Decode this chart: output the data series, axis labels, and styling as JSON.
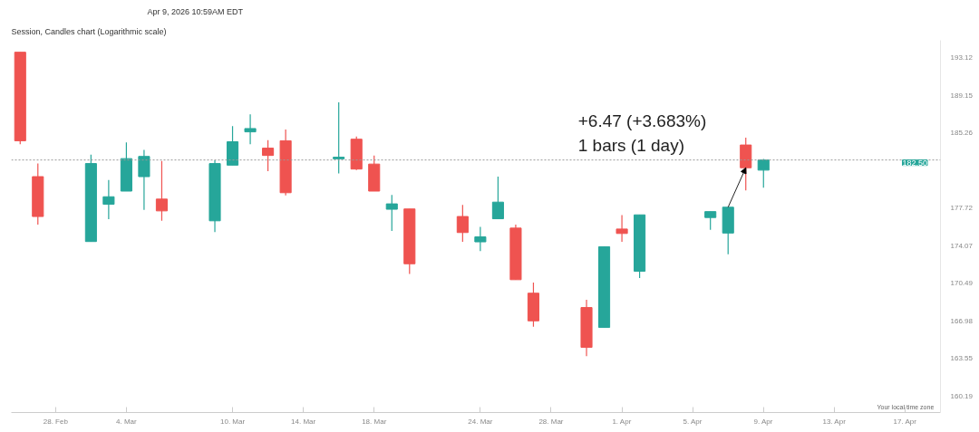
{
  "chart_data": {
    "type": "candlestick",
    "title": "Apr 9, 2026 10:59AM EDT",
    "subtitle": "Session, Candles chart (Logarithmic scale)",
    "x": [
      "2026-02-26",
      "2026-02-27",
      "2026-03-02",
      "2026-03-03",
      "2026-03-04",
      "2026-03-05",
      "2026-03-06",
      "2026-03-09",
      "2026-03-10",
      "2026-03-11",
      "2026-03-12",
      "2026-03-13",
      "2026-03-16",
      "2026-03-17",
      "2026-03-18",
      "2026-03-19",
      "2026-03-20",
      "2026-03-23",
      "2026-03-24",
      "2026-03-25",
      "2026-03-26",
      "2026-03-27",
      "2026-03-30",
      "2026-03-31",
      "2026-04-01",
      "2026-04-02",
      "2026-04-06",
      "2026-04-07",
      "2026-04-08",
      "2026-04-09"
    ],
    "ohlc": [
      [
        193.7,
        193.7,
        184.1,
        184.45
      ],
      [
        180.83,
        182.14,
        176.09,
        176.89
      ],
      [
        174.46,
        183.04,
        174.46,
        182.14
      ],
      [
        178.09,
        180.5,
        176.63,
        178.83
      ],
      [
        179.39,
        184.29,
        179.39,
        182.64
      ],
      [
        180.83,
        183.53,
        177.54,
        182.86
      ],
      [
        178.6,
        182.39,
        176.47,
        177.44
      ],
      [
        176.47,
        182.48,
        175.37,
        182.14
      ],
      [
        181.98,
        185.96,
        181.98,
        184.35
      ],
      [
        185.36,
        187.16,
        184.1,
        185.7
      ],
      [
        183.7,
        184.52,
        181.38,
        182.96
      ],
      [
        184.45,
        185.61,
        178.96,
        179.23
      ],
      [
        182.62,
        188.42,
        181.15,
        182.78
      ],
      [
        184.61,
        184.88,
        181.48,
        181.59
      ],
      [
        182.09,
        182.96,
        179.39,
        179.39
      ],
      [
        177.6,
        179.0,
        175.49,
        178.13
      ],
      [
        177.63,
        177.63,
        171.36,
        172.33
      ],
      [
        176.89,
        178.03,
        174.43,
        175.33
      ],
      [
        174.43,
        175.89,
        173.55,
        174.91
      ],
      [
        176.67,
        180.83,
        176.67,
        178.3
      ],
      [
        175.76,
        176.09,
        170.82,
        170.82
      ],
      [
        169.55,
        170.54,
        166.43,
        166.98
      ],
      [
        168.21,
        168.93,
        163.76,
        164.55
      ],
      [
        166.37,
        173.96,
        166.37,
        173.96
      ],
      [
        175.67,
        177.02,
        174.43,
        175.24
      ],
      [
        171.62,
        177.05,
        170.98,
        177.05
      ],
      [
        176.79,
        177.37,
        175.6,
        177.37
      ],
      [
        175.28,
        177.8,
        173.23,
        177.8
      ],
      [
        184.02,
        184.77,
        179.46,
        181.72
      ],
      [
        181.48,
        182.6,
        179.73,
        182.5
      ]
    ],
    "colors": [
      "#ef5350",
      "#ef5350",
      "#26a69a",
      "#26a69a",
      "#26a69a",
      "#26a69a",
      "#ef5350",
      "#26a69a",
      "#26a69a",
      "#26a69a",
      "#ef5350",
      "#ef5350",
      "#26a69a",
      "#ef5350",
      "#ef5350",
      "#26a69a",
      "#ef5350",
      "#ef5350",
      "#26a69a",
      "#26a69a",
      "#ef5350",
      "#ef5350",
      "#ef5350",
      "#26a69a",
      "#ef5350",
      "#26a69a",
      "#26a69a",
      "#26a69a",
      "#ef5350",
      "#26a69a"
    ],
    "log": "y",
    "grid": false,
    "tick_labels": true,
    "ylim": [
      158.73,
      194.98
    ],
    "yticks": [
      160.19,
      163.55,
      166.98,
      170.49,
      174.07,
      177.72,
      185.26,
      189.15,
      193.12
    ],
    "xlim": [
      "2026-02-25T12:00",
      "2026-04-19"
    ],
    "xticks": [
      {
        "value": "2026-02-28",
        "label": "28. Feb"
      },
      {
        "value": "2026-03-04",
        "label": "4. Mar"
      },
      {
        "value": "2026-03-10",
        "label": "10. Mar"
      },
      {
        "value": "2026-03-14",
        "label": "14. Mar"
      },
      {
        "value": "2026-03-18",
        "label": "18. Mar"
      },
      {
        "value": "2026-03-24",
        "label": "24. Mar"
      },
      {
        "value": "2026-03-28",
        "label": "28. Mar"
      },
      {
        "value": "2026-04-01",
        "label": "1. Apr"
      },
      {
        "value": "2026-04-05",
        "label": "5. Apr"
      },
      {
        "value": "2026-04-09",
        "label": "9. Apr"
      },
      {
        "value": "2026-04-13",
        "label": "13. Apr"
      },
      {
        "value": "2026-04-17",
        "label": "17. Apr"
      }
    ],
    "ref_lines": [
      {
        "axis": "y",
        "value": 182.5,
        "label": "182.50",
        "color": "#999999",
        "line_style": "dotted"
      }
    ],
    "annotations": [
      {
        "text": "+6.47 (+3.683%)\n1 bars (1 day)",
        "x": "2026-04-08",
        "y": 181.72
      },
      "Your local time zone"
    ]
  }
}
